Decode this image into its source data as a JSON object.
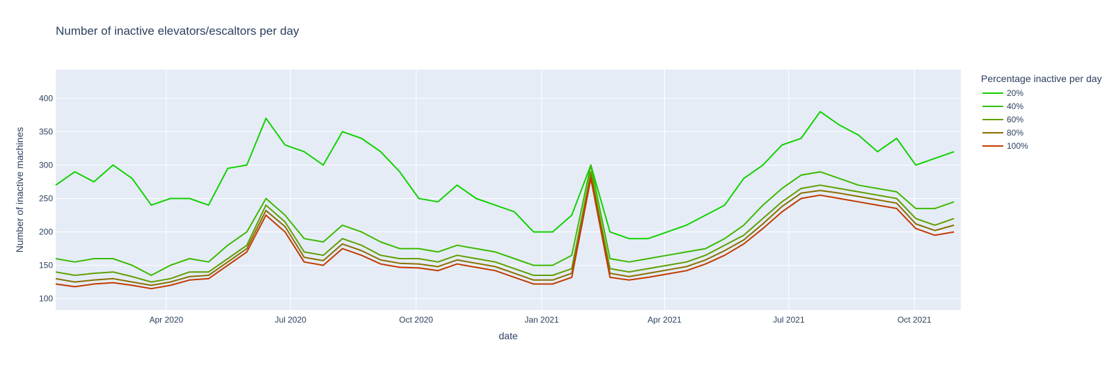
{
  "chart_data": {
    "type": "line",
    "title": "Number of inactive elevators/escaltors per day",
    "xlabel": "date",
    "ylabel": "Number of inactive machines",
    "x_range": [
      "2020-01-11",
      "2021-11-04"
    ],
    "ylim": [
      83,
      443
    ],
    "y_ticks": [
      100,
      150,
      200,
      250,
      300,
      350,
      400
    ],
    "x_ticks": [
      {
        "date": "2020-04-01",
        "label": "Apr 2020"
      },
      {
        "date": "2020-07-01",
        "label": "Jul 2020"
      },
      {
        "date": "2020-10-01",
        "label": "Oct 2020"
      },
      {
        "date": "2021-01-01",
        "label": "Jan 2021"
      },
      {
        "date": "2021-04-01",
        "label": "Apr 2021"
      },
      {
        "date": "2021-07-01",
        "label": "Jul 2021"
      },
      {
        "date": "2021-10-01",
        "label": "Oct 2021"
      }
    ],
    "legend": {
      "title": "Percentage inactive per day",
      "position": "top-right"
    },
    "sample_dates": [
      "2020-01-11",
      "2020-01-25",
      "2020-02-08",
      "2020-02-22",
      "2020-03-07",
      "2020-03-21",
      "2020-04-04",
      "2020-04-18",
      "2020-05-02",
      "2020-05-16",
      "2020-05-30",
      "2020-06-13",
      "2020-06-27",
      "2020-07-11",
      "2020-07-25",
      "2020-08-08",
      "2020-08-22",
      "2020-09-05",
      "2020-09-19",
      "2020-10-03",
      "2020-10-17",
      "2020-10-31",
      "2020-11-14",
      "2020-11-28",
      "2020-12-12",
      "2020-12-26",
      "2021-01-09",
      "2021-01-23",
      "2021-02-06",
      "2021-02-20",
      "2021-03-06",
      "2021-03-20",
      "2021-04-03",
      "2021-04-17",
      "2021-05-01",
      "2021-05-15",
      "2021-05-29",
      "2021-06-12",
      "2021-06-26",
      "2021-07-10",
      "2021-07-24",
      "2021-08-07",
      "2021-08-21",
      "2021-09-04",
      "2021-09-18",
      "2021-10-02",
      "2021-10-16",
      "2021-10-30"
    ],
    "series": [
      {
        "name": "20%",
        "color": "#11d100",
        "values": [
          270,
          290,
          275,
          300,
          280,
          240,
          250,
          250,
          240,
          295,
          300,
          370,
          330,
          320,
          300,
          350,
          340,
          320,
          290,
          250,
          245,
          270,
          250,
          240,
          230,
          200,
          200,
          225,
          300,
          200,
          190,
          190,
          200,
          210,
          225,
          240,
          280,
          300,
          330,
          340,
          380,
          360,
          345,
          320,
          340,
          300,
          310,
          320
        ]
      },
      {
        "name": "40%",
        "color": "#3cba00",
        "values": [
          160,
          155,
          160,
          160,
          150,
          135,
          150,
          160,
          155,
          180,
          200,
          250,
          225,
          190,
          185,
          210,
          200,
          185,
          175,
          175,
          170,
          180,
          175,
          170,
          160,
          150,
          150,
          165,
          300,
          160,
          155,
          160,
          165,
          170,
          175,
          190,
          210,
          240,
          265,
          285,
          290,
          280,
          270,
          265,
          260,
          235,
          235,
          245
        ]
      },
      {
        "name": "60%",
        "color": "#609f00",
        "values": [
          140,
          135,
          138,
          140,
          133,
          125,
          130,
          140,
          140,
          160,
          180,
          240,
          215,
          170,
          165,
          190,
          180,
          165,
          160,
          160,
          155,
          165,
          160,
          155,
          145,
          135,
          135,
          145,
          290,
          145,
          140,
          145,
          150,
          155,
          165,
          180,
          195,
          220,
          245,
          265,
          270,
          265,
          260,
          255,
          250,
          220,
          210,
          220
        ]
      },
      {
        "name": "80%",
        "color": "#8a6f00",
        "values": [
          130,
          125,
          128,
          130,
          125,
          120,
          125,
          133,
          135,
          155,
          175,
          232,
          208,
          162,
          157,
          182,
          172,
          158,
          153,
          152,
          148,
          158,
          153,
          148,
          138,
          128,
          128,
          138,
          285,
          138,
          133,
          138,
          143,
          148,
          158,
          172,
          188,
          212,
          238,
          258,
          262,
          258,
          253,
          248,
          243,
          212,
          202,
          210
        ]
      },
      {
        "name": "100%",
        "color": "#c33a00",
        "values": [
          122,
          118,
          122,
          124,
          120,
          115,
          120,
          128,
          130,
          150,
          170,
          225,
          200,
          155,
          150,
          175,
          165,
          152,
          147,
          146,
          142,
          152,
          147,
          142,
          132,
          122,
          122,
          132,
          280,
          132,
          128,
          132,
          137,
          142,
          152,
          165,
          182,
          205,
          230,
          250,
          255,
          250,
          245,
          240,
          235,
          205,
          195,
          200
        ]
      }
    ]
  }
}
